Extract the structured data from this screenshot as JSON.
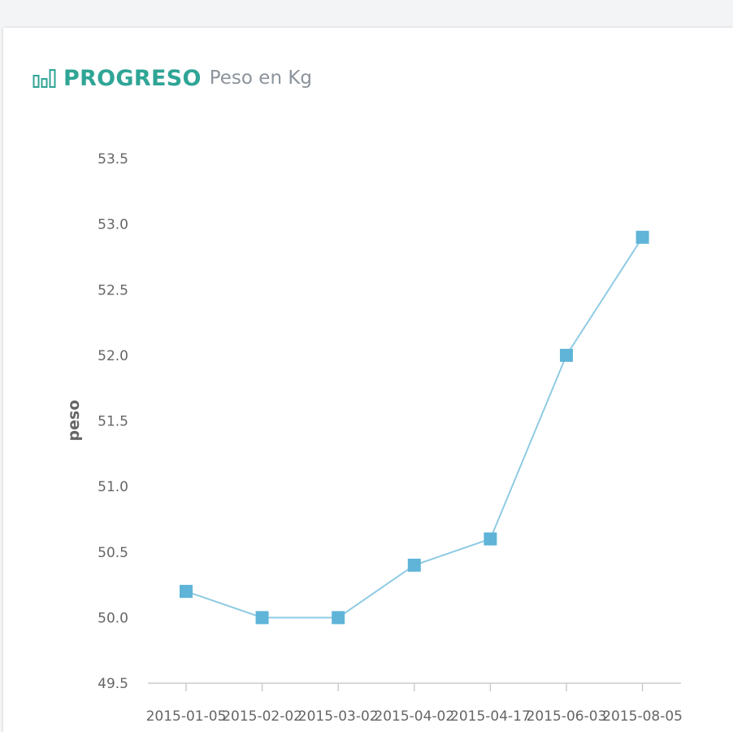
{
  "header": {
    "title": "PROGRESO",
    "subtitle": "Peso en Kg",
    "icon": "bar-chart-icon"
  },
  "colors": {
    "accent": "#2fa596",
    "series": "#5fb4d8",
    "line": "#8fcbe3",
    "axis": "#cccccc"
  },
  "chart_data": {
    "type": "line",
    "title": "",
    "xlabel": "",
    "ylabel": "peso",
    "ylim": [
      49.5,
      53.5
    ],
    "yticks": [
      "49.5",
      "50.0",
      "50.5",
      "51.0",
      "51.5",
      "52.0",
      "52.5",
      "53.0",
      "53.5"
    ],
    "categories": [
      "2015-01-05",
      "2015-02-02",
      "2015-03-02",
      "2015-04-02",
      "2015-04-17",
      "2015-06-03",
      "2015-08-05"
    ],
    "series": [
      {
        "values": [
          50.2,
          50.0,
          50.0,
          50.4,
          50.6,
          52.0,
          52.9
        ]
      }
    ],
    "grid": false,
    "legend": "none"
  }
}
